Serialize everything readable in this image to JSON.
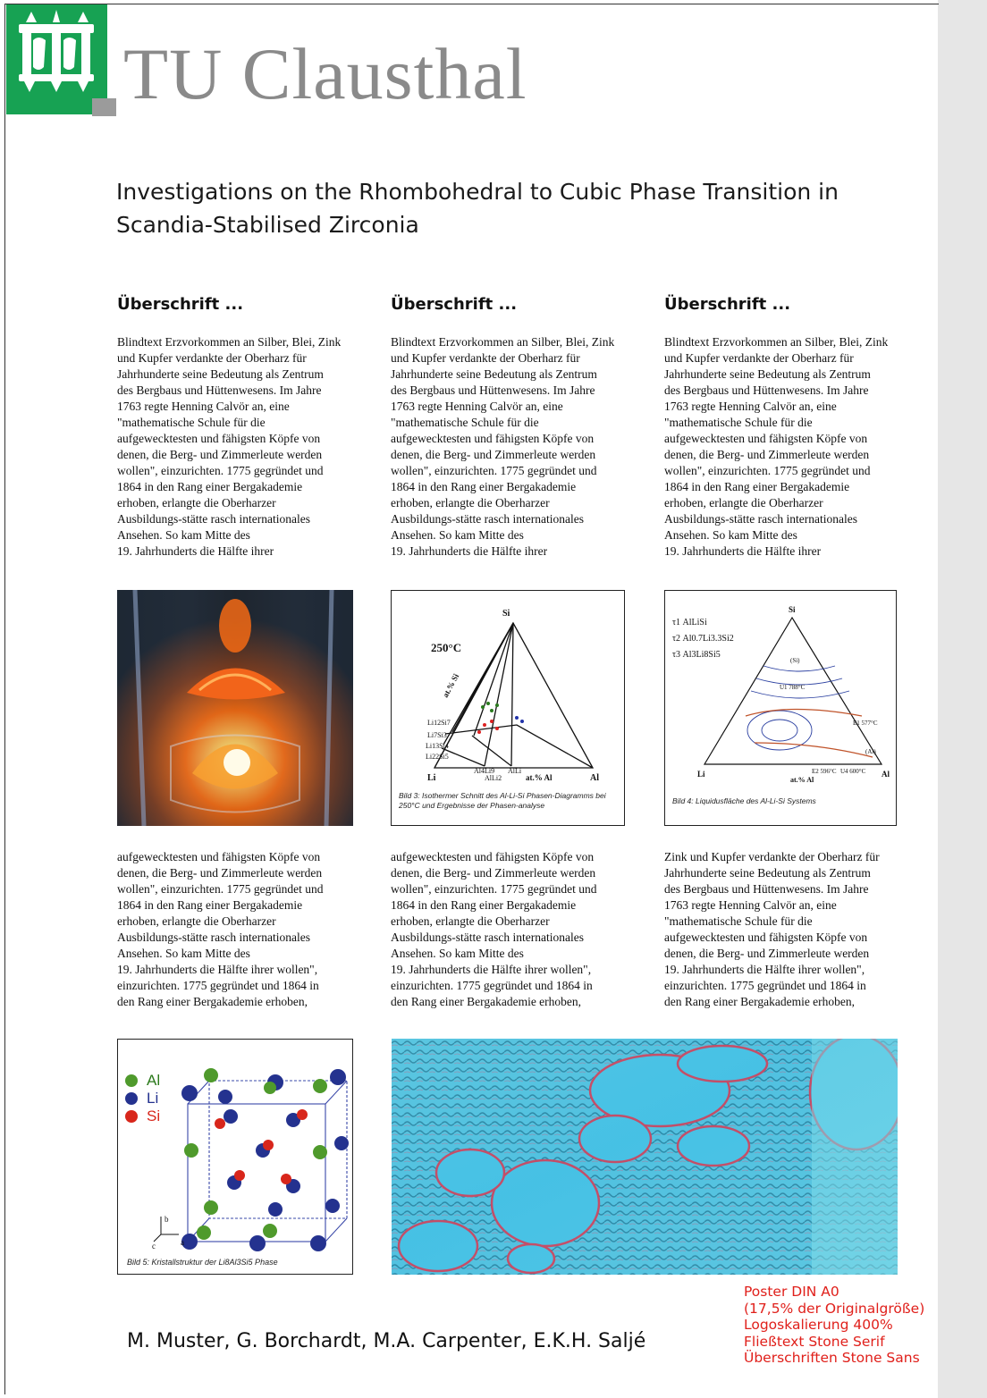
{
  "header": {
    "brand": "TU Clausthal"
  },
  "title": {
    "line1": "Investigations on the Rhombohedral to Cubic Phase Transition in",
    "line2": "Scandia-Stabilised  Zirconia"
  },
  "columns": [
    {
      "heading": "Überschrift ...",
      "text1": [
        "Blindtext Erzvorkommen an Silber, Blei, Zink",
        "und Kupfer verdankte der Oberharz für",
        "Jahrhunderte seine Bedeutung als Zentrum",
        "des Bergbaus und Hüttenwesens. Im Jahre",
        "1763 regte Henning Calvör an, eine",
        "\"mathematische Schule für die",
        "aufgewecktesten und fähigsten Köpfe von",
        "denen, die Berg- und Zimmerleute werden",
        "wollen\", einzurichten. 1775 gegründet und",
        "1864 in den Rang einer Bergakademie",
        "erhoben, erlangte die Oberharzer",
        "Ausbildungs-stätte rasch internationales",
        "Ansehen. So kam Mitte des",
        "19. Jahrhunderts die Hälfte ihrer"
      ],
      "text2": [
        "aufgewecktesten und fähigsten Köpfe von",
        "denen, die Berg- und Zimmerleute werden",
        "wollen\", einzurichten. 1775 gegründet und",
        "1864 in den Rang einer Bergakademie",
        "erhoben, erlangte die Oberharzer",
        "Ausbildungs-stätte rasch internationales",
        "Ansehen. So kam Mitte des",
        "19. Jahrhunderts die Hälfte ihrer wollen\",",
        "einzurichten. 1775 gegründet und 1864 in",
        "den Rang einer Bergakademie erhoben,"
      ]
    },
    {
      "heading": "Überschrift ...",
      "text1": [
        "Blindtext Erzvorkommen an Silber, Blei, Zink",
        "und Kupfer verdankte der Oberharz für",
        "Jahrhunderte seine Bedeutung als Zentrum",
        "des Bergbaus und Hüttenwesens. Im Jahre",
        "1763 regte Henning Calvör an, eine",
        "\"mathematische Schule für die",
        "aufgewecktesten und fähigsten Köpfe von",
        "denen, die Berg- und Zimmerleute werden",
        "wollen\", einzurichten. 1775 gegründet und",
        "1864 in den Rang einer Bergakademie",
        "erhoben, erlangte die Oberharzer",
        "Ausbildungs-stätte rasch internationales",
        "Ansehen. So kam Mitte des",
        "19. Jahrhunderts die Hälfte ihrer"
      ],
      "text2": [
        "aufgewecktesten und fähigsten Köpfe von",
        "denen, die Berg- und Zimmerleute werden",
        "wollen\", einzurichten. 1775 gegründet und",
        "1864 in den Rang einer Bergakademie",
        "erhoben, erlangte die Oberharzer",
        "Ausbildungs-stätte rasch internationales",
        "Ansehen. So kam Mitte des",
        "19. Jahrhunderts die Hälfte ihrer wollen\",",
        "einzurichten. 1775 gegründet und 1864 in",
        "den Rang einer Bergakademie erhoben,"
      ]
    },
    {
      "heading": "Überschrift ...",
      "text1": [
        "Blindtext Erzvorkommen an Silber, Blei, Zink",
        "und Kupfer verdankte der Oberharz für",
        "Jahrhunderte seine Bedeutung als Zentrum",
        "des Bergbaus und Hüttenwesens. Im Jahre",
        "1763 regte Henning Calvör an, eine",
        "\"mathematische Schule für die",
        "aufgewecktesten und fähigsten Köpfe von",
        "denen, die Berg- und Zimmerleute werden",
        "wollen\", einzurichten. 1775 gegründet und",
        "1864 in den Rang einer Bergakademie",
        "erhoben, erlangte die Oberharzer",
        "Ausbildungs-stätte rasch internationales",
        "Ansehen. So kam Mitte des",
        "19. Jahrhunderts die Hälfte ihrer"
      ],
      "text2": [
        "Zink und Kupfer verdankte der Oberharz für",
        "Jahrhunderte seine Bedeutung als Zentrum",
        "des Bergbaus und Hüttenwesens. Im Jahre",
        "1763 regte Henning Calvör an, eine",
        "\"mathematische Schule für die",
        "aufgewecktesten und fähigsten Köpfe von",
        "denen, die Berg- und Zimmerleute werden",
        "19. Jahrhunderts die Hälfte ihrer wollen\",",
        "einzurichten. 1775 gegründet und 1864 in",
        "den Rang einer Bergakademie erhoben,"
      ]
    }
  ],
  "figures": {
    "diagram1": {
      "caption": "Bild 3: Isothermer Schnitt des Al-Li-Si Phasen-Diagramms bei 250°C und Ergebnisse der Phasen-analyse",
      "temp": "250°C",
      "apex_top": "Si",
      "apex_left": "Li",
      "apex_right": "Al",
      "axis_left": "at.% Si",
      "axis_bottom": "at.% Al",
      "phases": [
        "Li12Si7",
        "Li7Si3",
        "Li13Si4",
        "Li22Si5",
        "Al4Li9",
        "AlLi2",
        "AlLi"
      ]
    },
    "diagram2": {
      "caption": "Bild 4: Liquidusfläche des Al-Li-Si Systems",
      "legend": [
        "τ1 AlLiSi",
        "τ2 Al0.7Li3.3Si2",
        "τ3 Al3Li8Si5"
      ],
      "apex_top": "Si",
      "apex_left": "Li",
      "apex_right": "Al",
      "axis_bottom": "at.% Al",
      "labels": [
        "(Si)",
        "(Al)",
        "U1 788°C",
        "E1 577°C",
        "E2 596°C",
        "U4 600°C"
      ]
    },
    "crystal": {
      "caption": "Bild 5: Kristallstruktur der Li8Al3Si5 Phase",
      "legend": [
        {
          "label": "Al",
          "color": "#4f9a2c"
        },
        {
          "label": "Li",
          "color": "#24328f"
        },
        {
          "label": "Si",
          "color": "#d8261b"
        }
      ],
      "axes": [
        "b",
        "c",
        "a"
      ]
    }
  },
  "authors": "M. Muster, G. Borchardt, M.A. Carpenter, E.K.H. Saljé",
  "note": [
    "Poster DIN A0",
    "(17,5% der Originalgröße)",
    "Logoskalierung 400%",
    "Fließtext Stone Serif",
    "Überschriften Stone Sans"
  ]
}
